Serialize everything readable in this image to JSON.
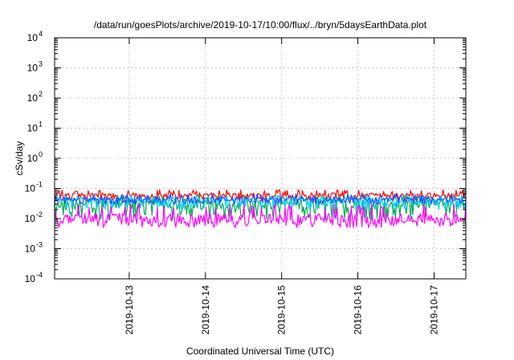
{
  "chart_data": {
    "type": "line",
    "title": "/data/run/goesPlots/archive/2019-10-17/10:00/flux/../bryn/5daysEarthData.plot",
    "xlabel": "Coordinated Universal Time (UTC)",
    "ylabel": "cSv/day",
    "yscale": "log",
    "ylim": [
      0.0001,
      10000
    ],
    "y_ticks": [
      {
        "value": 0.0001,
        "base": "10",
        "exp": "-4"
      },
      {
        "value": 0.001,
        "base": "10",
        "exp": "-3"
      },
      {
        "value": 0.01,
        "base": "10",
        "exp": "-2"
      },
      {
        "value": 0.1,
        "base": "10",
        "exp": "-1"
      },
      {
        "value": 1,
        "base": "10",
        "exp": "0"
      },
      {
        "value": 10,
        "base": "10",
        "exp": "1"
      },
      {
        "value": 100,
        "base": "10",
        "exp": "2"
      },
      {
        "value": 1000,
        "base": "10",
        "exp": "3"
      },
      {
        "value": 10000,
        "base": "10",
        "exp": "4"
      }
    ],
    "xlim": [
      "2019-10-12T00:30",
      "2019-10-17T10:00"
    ],
    "x_ticks": [
      "2019-10-13",
      "2019-10-14",
      "2019-10-15",
      "2019-10-16",
      "2019-10-17"
    ],
    "grid": true,
    "series": [
      {
        "color": "#ff0000",
        "low": 0.04,
        "high": 0.09,
        "typical": 0.06
      },
      {
        "color": "#00aa55",
        "low": 0.009,
        "high": 0.06,
        "typical": 0.03
      },
      {
        "color": "#00ccff",
        "low": 0.02,
        "high": 0.06,
        "typical": 0.04
      },
      {
        "color": "#2050ff",
        "low": 0.03,
        "high": 0.065,
        "typical": 0.045
      },
      {
        "color": "#ff00ff",
        "low": 0.005,
        "high": 0.03,
        "typical": 0.01
      }
    ]
  }
}
